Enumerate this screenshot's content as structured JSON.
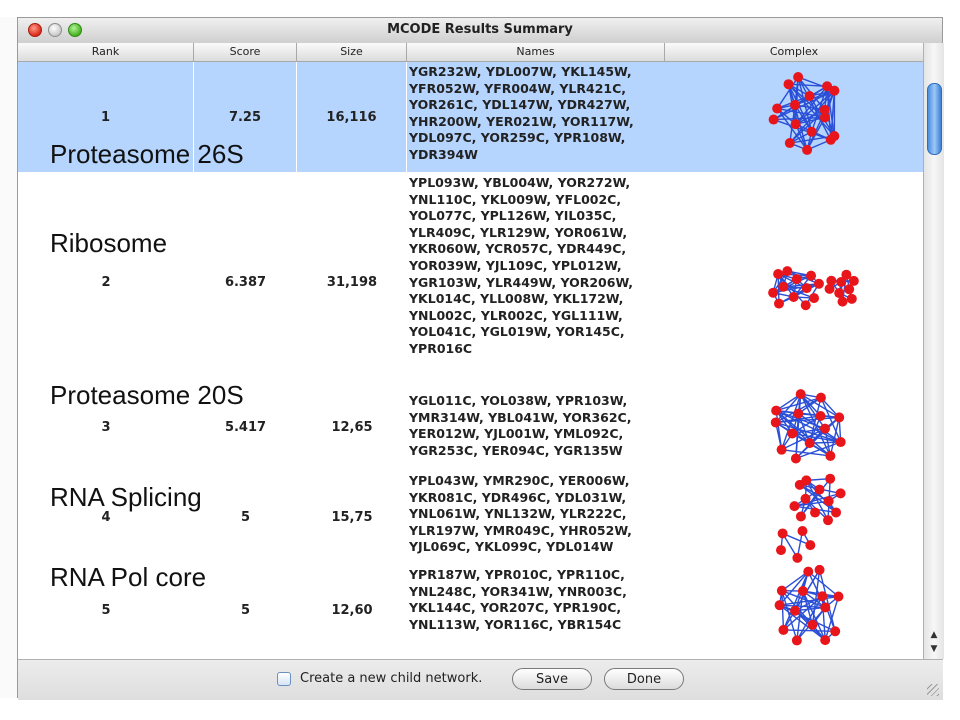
{
  "window": {
    "title": "MCODE Results Summary"
  },
  "columns": [
    "Rank",
    "Score",
    "Size",
    "Names",
    "Complex"
  ],
  "rows": [
    {
      "rank": "1",
      "score": "7.25",
      "size": "16,116",
      "names": "YGR232W, YDL007W, YKL145W,\nYFR052W, YFR004W, YLR421C,\nYOR261C, YDL147W, YDR427W,\nYHR200W, YER021W, YOR117W,\nYDL097C, YOR259C, YPR108W,\nYDR394W",
      "selected": true,
      "complex_icon": "network-graph-icon"
    },
    {
      "rank": "2",
      "score": "6.387",
      "size": "31,198",
      "names": "YPL093W, YBL004W, YOR272W,\nYNL110C, YKL009W, YFL002C,\nYOL077C, YPL126W, YIL035C,\nYLR409C, YLR129W, YOR061W,\nYKR060W, YCR057C, YDR449C,\nYOR039W, YJL109C, YPL012W,\nYGR103W, YLR449W, YOR206W,\nYKL014C, YLL008W, YKL172W,\nYNL002C, YLR002C, YGL111W,\nYOL041C, YGL019W, YOR145C,\nYPR016C",
      "selected": false,
      "complex_icon": "network-graph-icon"
    },
    {
      "rank": "3",
      "score": "5.417",
      "size": "12,65",
      "names": "YGL011C, YOL038W, YPR103W,\nYMR314W, YBL041W, YOR362C,\nYER012W, YJL001W, YML092C,\nYGR253C, YER094C, YGR135W",
      "selected": false,
      "complex_icon": "network-graph-icon"
    },
    {
      "rank": "4",
      "score": "5",
      "size": "15,75",
      "names": "YPL043W, YMR290C, YER006W,\nYKR081C, YDR496C, YDL031W,\nYNL061W, YNL132W, YLR222C,\nYLR197W, YMR049C, YHR052W,\nYJL069C, YKL099C, YDL014W",
      "selected": false,
      "complex_icon": "network-graph-icon"
    },
    {
      "rank": "5",
      "score": "5",
      "size": "12,60",
      "names": "YPR187W, YPR010C, YPR110C,\nYNL248C, YOR341W, YNR003C,\nYKL144C, YOR207C, YPR190C,\nYNL113W, YOR116C, YBR154C",
      "selected": false,
      "complex_icon": "network-graph-icon"
    }
  ],
  "annotations": [
    "Proteasome 26S",
    "Ribosome",
    "Proteasome 20S",
    "RNA Splicing",
    "RNA Pol core"
  ],
  "footer": {
    "checkbox_label": "Create a new child network.",
    "checkbox_checked": false,
    "save_label": "Save",
    "done_label": "Done"
  },
  "colors": {
    "selection": "#b5d5ff",
    "node": "#e8161b",
    "edge": "#2a4fd6",
    "accent": "#3a7fd6"
  }
}
